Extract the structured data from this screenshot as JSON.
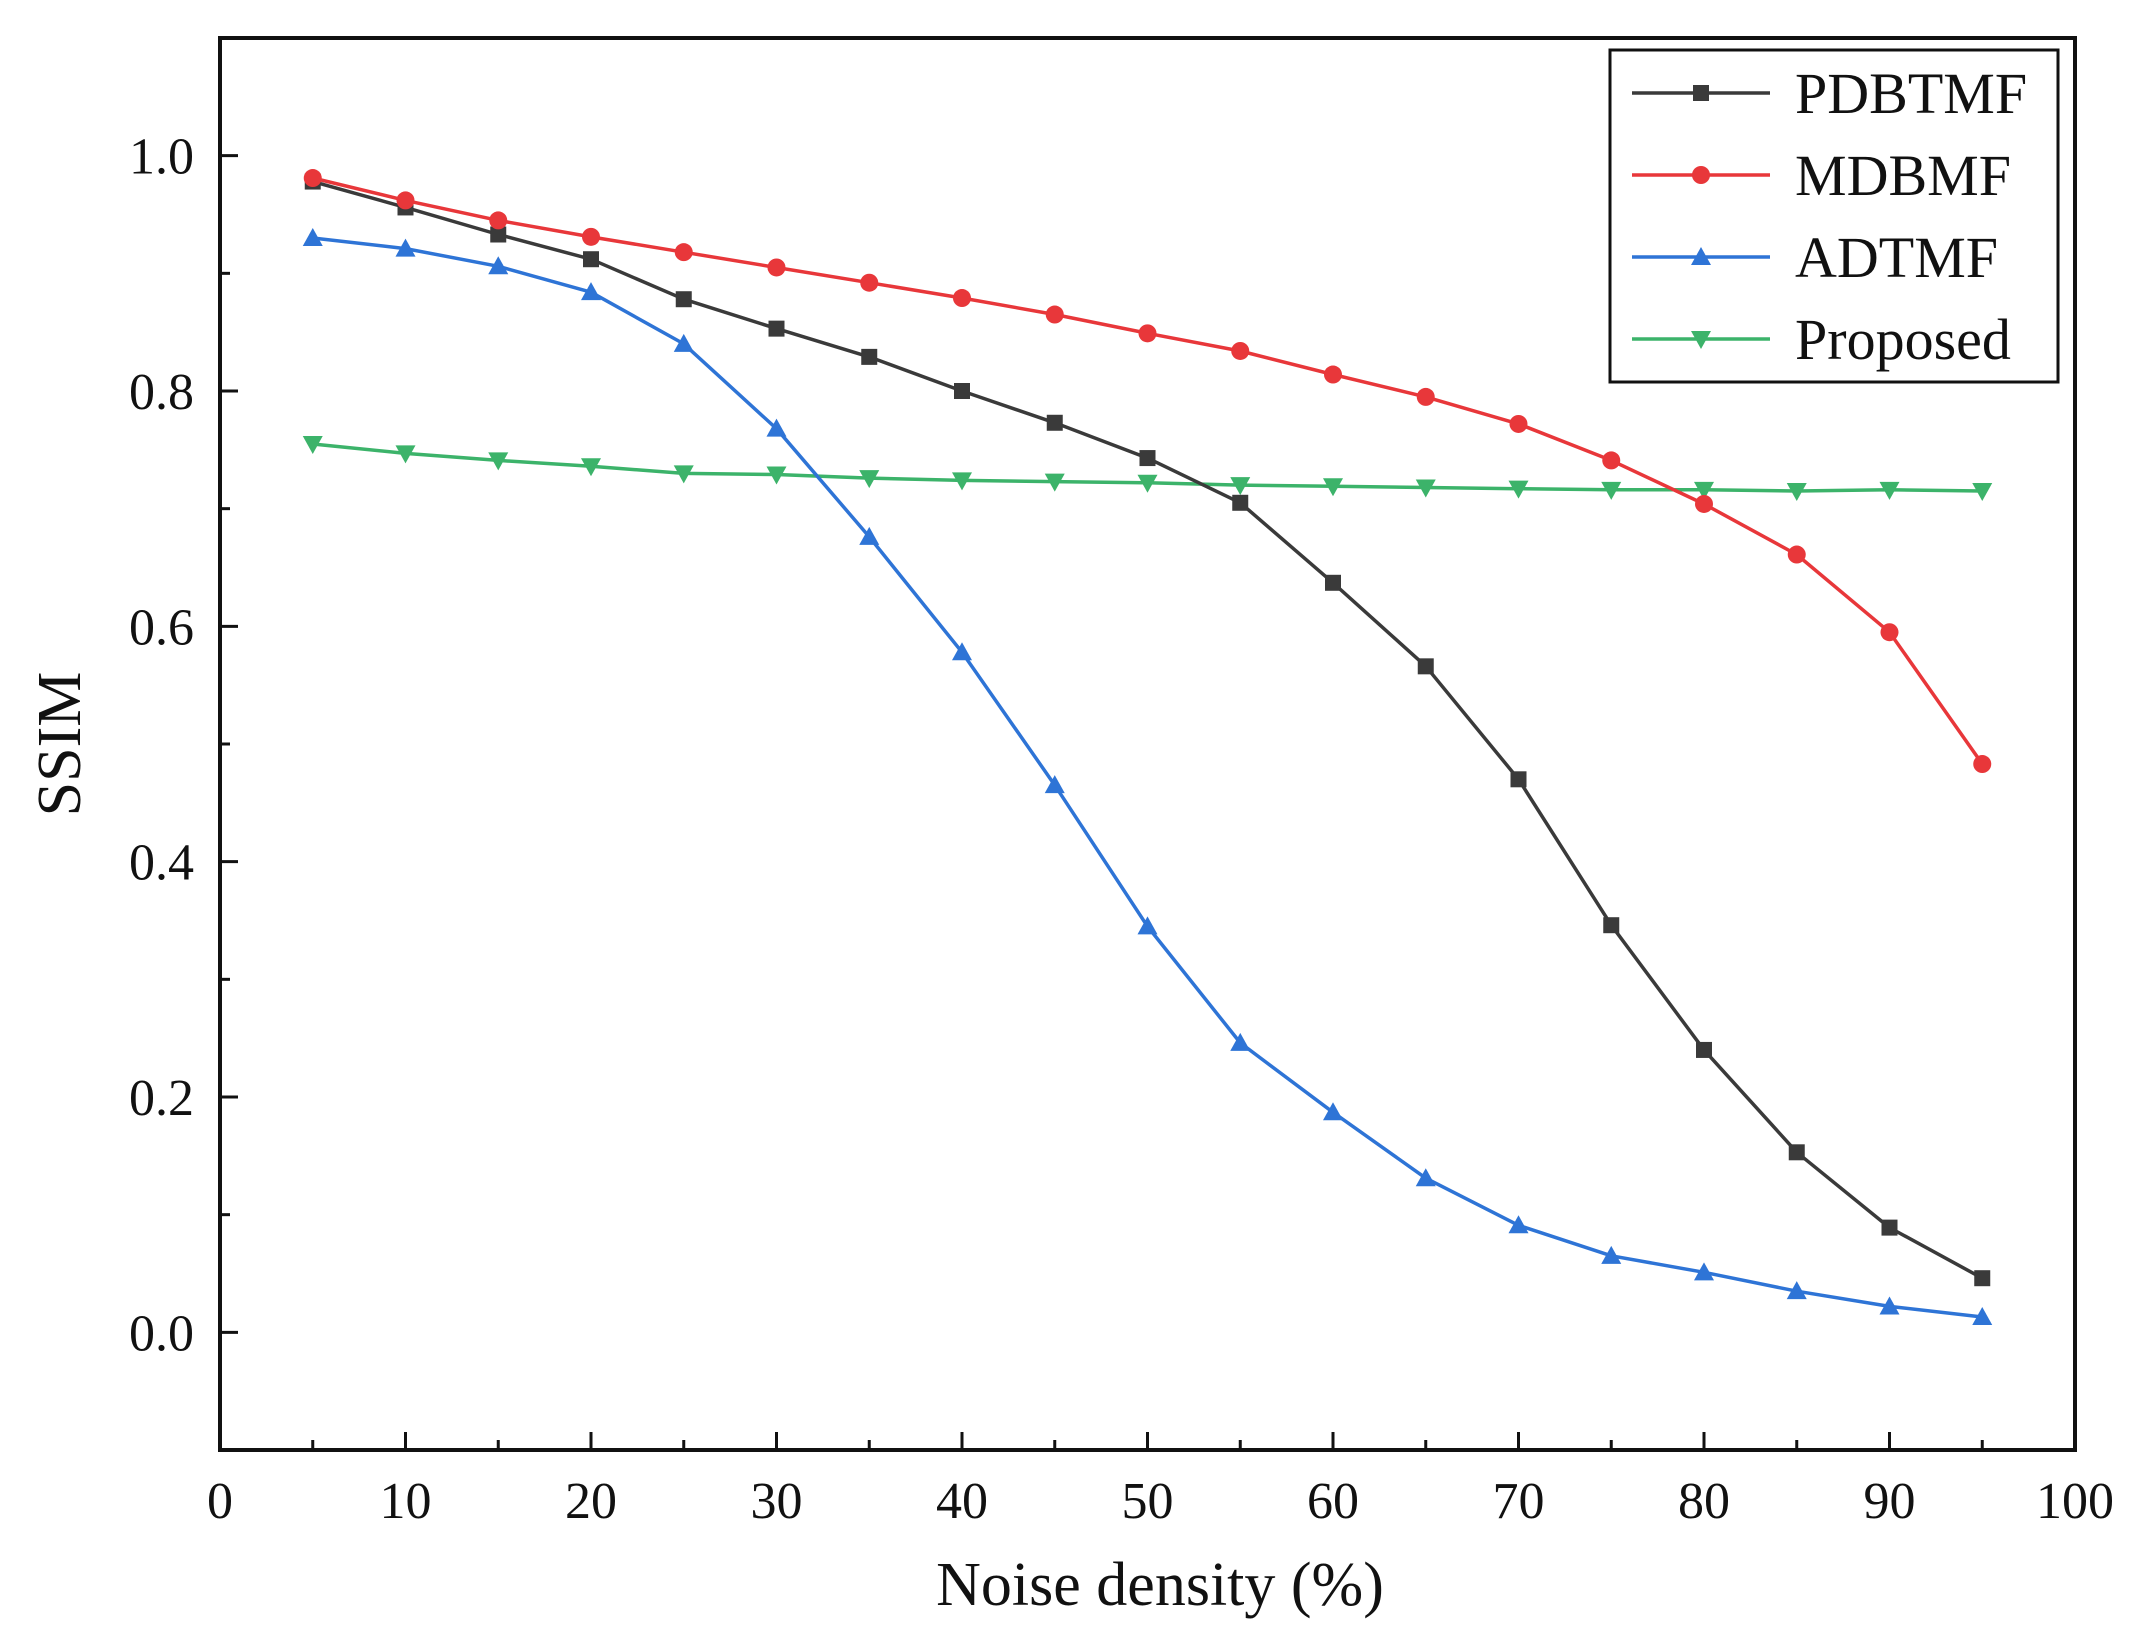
{
  "chart_data": {
    "type": "line",
    "title": "",
    "xlabel": "Noise density (%)",
    "ylabel": "SSIM",
    "xlim": [
      0,
      100
    ],
    "ylim": [
      -0.1,
      1.1
    ],
    "x_ticks": [
      0,
      10,
      20,
      30,
      40,
      50,
      60,
      70,
      80,
      90,
      100
    ],
    "y_ticks": [
      0.0,
      0.2,
      0.4,
      0.6,
      0.8,
      1.0
    ],
    "x_tick_labels": [
      "0",
      "10",
      "20",
      "30",
      "40",
      "50",
      "60",
      "70",
      "80",
      "90",
      "100"
    ],
    "y_tick_labels": [
      "0.0",
      "0.2",
      "0.4",
      "0.6",
      "0.8",
      "1.0"
    ],
    "legend_position": "top-right",
    "grid": false,
    "x": [
      5,
      10,
      15,
      20,
      25,
      30,
      35,
      40,
      45,
      50,
      55,
      60,
      65,
      70,
      75,
      80,
      85,
      90,
      95
    ],
    "series": [
      {
        "name": "PDBTMF",
        "color": "#3a3a3a",
        "marker": "square",
        "values": [
          0.978,
          0.956,
          0.933,
          0.912,
          0.878,
          0.853,
          0.829,
          0.8,
          0.773,
          0.743,
          0.705,
          0.637,
          0.566,
          0.47,
          0.346,
          0.24,
          0.153,
          0.089,
          0.046
        ]
      },
      {
        "name": "MDBMF",
        "color": "#e8373a",
        "marker": "circle",
        "values": [
          0.981,
          0.962,
          0.945,
          0.931,
          0.918,
          0.905,
          0.892,
          0.879,
          0.865,
          0.849,
          0.834,
          0.814,
          0.795,
          0.772,
          0.741,
          0.704,
          0.661,
          0.595,
          0.483
        ]
      },
      {
        "name": "ADTMF",
        "color": "#2e74d6",
        "marker": "triangle-up",
        "values": [
          0.93,
          0.921,
          0.906,
          0.884,
          0.84,
          0.768,
          0.676,
          0.578,
          0.465,
          0.345,
          0.246,
          0.187,
          0.131,
          0.091,
          0.065,
          0.051,
          0.035,
          0.022,
          0.013
        ]
      },
      {
        "name": "Proposed",
        "color": "#3cb36a",
        "marker": "triangle-down",
        "values": [
          0.755,
          0.747,
          0.741,
          0.736,
          0.73,
          0.729,
          0.726,
          0.724,
          0.723,
          0.722,
          0.72,
          0.719,
          0.718,
          0.717,
          0.716,
          0.716,
          0.715,
          0.716,
          0.715
        ]
      }
    ]
  }
}
